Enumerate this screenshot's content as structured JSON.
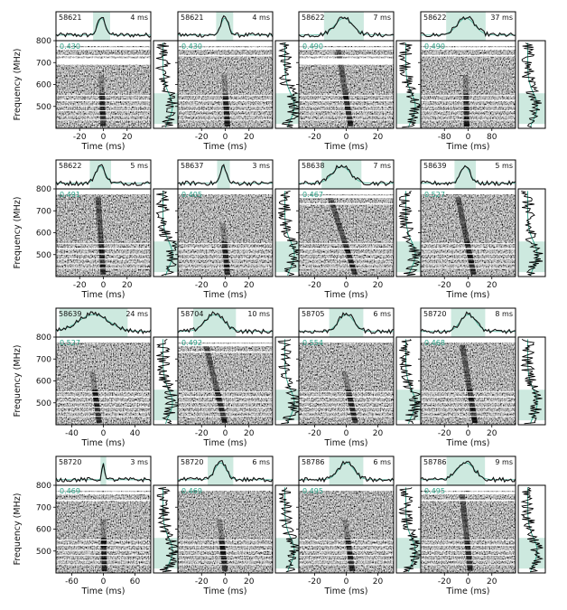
{
  "figure": {
    "freq_axis_label": "Frequency (MHz)",
    "time_axis_label": "Time (ms)",
    "colors": {
      "highlight": "#cde9df",
      "dm_text": "#2aa085",
      "profile": "#111111",
      "model": "#2aa085"
    }
  },
  "chart_data": [
    {
      "type": "heatmap",
      "mjd": "58621",
      "width": "4 ms",
      "dm_offset": "0.430",
      "xlim": [
        -40,
        40
      ],
      "xticks": [
        -20,
        0,
        20
      ],
      "ylim": [
        400,
        800
      ],
      "yticks": [
        500,
        600,
        700,
        800
      ],
      "sweep": {
        "t800": -3,
        "t400": 0
      }
    },
    {
      "type": "heatmap",
      "mjd": "58621",
      "width": "4 ms",
      "dm_offset": "0.430",
      "xlim": [
        -40,
        40
      ],
      "xticks": [
        -20,
        0,
        20
      ],
      "ylim": [
        400,
        800
      ],
      "yticks": [
        500,
        600,
        700,
        800
      ],
      "sweep": {
        "t800": -3,
        "t400": 2
      }
    },
    {
      "type": "heatmap",
      "mjd": "58622",
      "width": "7 ms",
      "dm_offset": "0.490",
      "xlim": [
        -30,
        30
      ],
      "xticks": [
        -20,
        0,
        20
      ],
      "ylim": [
        400,
        800
      ],
      "yticks": [
        500,
        600,
        700,
        800
      ],
      "sweep": {
        "t800": -6,
        "t400": 3
      }
    },
    {
      "type": "heatmap",
      "mjd": "58622",
      "width": "37 ms",
      "dm_offset": "0.490",
      "xlim": [
        -160,
        160
      ],
      "xticks": [
        -80,
        0,
        80
      ],
      "ylim": [
        400,
        800
      ],
      "yticks": [
        500,
        600,
        700,
        800
      ],
      "sweep": {
        "t800": -10,
        "t400": -5
      }
    },
    {
      "type": "heatmap",
      "mjd": "58622",
      "width": "5 ms",
      "dm_offset": "0.491",
      "xlim": [
        -40,
        40
      ],
      "xticks": [
        -20,
        0,
        20
      ],
      "ylim": [
        400,
        800
      ],
      "yticks": [
        500,
        600,
        700,
        800
      ],
      "sweep": {
        "t800": -5,
        "t400": 0
      }
    },
    {
      "type": "heatmap",
      "mjd": "58637",
      "width": "3 ms",
      "dm_offset": "0.405",
      "xlim": [
        -40,
        40
      ],
      "xticks": [
        -20,
        0,
        20
      ],
      "ylim": [
        400,
        800
      ],
      "yticks": [
        500,
        600,
        700,
        800
      ],
      "sweep": {
        "t800": -5,
        "t400": 2
      }
    },
    {
      "type": "heatmap",
      "mjd": "58638",
      "width": "7 ms",
      "dm_offset": "0.467",
      "xlim": [
        -30,
        30
      ],
      "xticks": [
        -20,
        0,
        20
      ],
      "ylim": [
        400,
        800
      ],
      "yticks": [
        500,
        600,
        700,
        800
      ],
      "sweep": {
        "t800": -12,
        "t400": 6
      }
    },
    {
      "type": "heatmap",
      "mjd": "58639",
      "width": "5 ms",
      "dm_offset": "0.527",
      "xlim": [
        -40,
        40
      ],
      "xticks": [
        -20,
        0,
        20
      ],
      "ylim": [
        400,
        800
      ],
      "yticks": [
        500,
        600,
        700,
        800
      ],
      "sweep": {
        "t800": -10,
        "t400": 5
      }
    },
    {
      "type": "heatmap",
      "mjd": "58639",
      "width": "24 ms",
      "dm_offset": "0.527",
      "xlim": [
        -60,
        60
      ],
      "xticks": [
        -40,
        0,
        40
      ],
      "ylim": [
        400,
        800
      ],
      "yticks": [
        500,
        600,
        700,
        800
      ],
      "sweep": {
        "t800": -20,
        "t400": -5
      }
    },
    {
      "type": "heatmap",
      "mjd": "58704",
      "width": "10 ms",
      "dm_offset": "0.492",
      "xlim": [
        -40,
        40
      ],
      "xticks": [
        -20,
        0,
        20
      ],
      "ylim": [
        400,
        800
      ],
      "yticks": [
        500,
        600,
        700,
        800
      ],
      "sweep": {
        "t800": -18,
        "t400": 0
      }
    },
    {
      "type": "heatmap",
      "mjd": "58705",
      "width": "6 ms",
      "dm_offset": "0.554",
      "xlim": [
        -30,
        30
      ],
      "xticks": [
        -20,
        0,
        20
      ],
      "ylim": [
        400,
        800
      ],
      "yticks": [
        500,
        600,
        700,
        800
      ],
      "sweep": {
        "t800": -6,
        "t400": 6
      }
    },
    {
      "type": "heatmap",
      "mjd": "58720",
      "width": "8 ms",
      "dm_offset": "0.468",
      "xlim": [
        -40,
        40
      ],
      "xticks": [
        -20,
        0,
        20
      ],
      "ylim": [
        400,
        800
      ],
      "yticks": [
        500,
        600,
        700,
        800
      ],
      "sweep": {
        "t800": -6,
        "t400": 6
      }
    },
    {
      "type": "heatmap",
      "mjd": "58720",
      "width": "3 ms",
      "dm_offset": "0.469",
      "xlim": [
        -90,
        90
      ],
      "xticks": [
        -60,
        0,
        60
      ],
      "ylim": [
        400,
        800
      ],
      "yticks": [
        500,
        600,
        700,
        800
      ],
      "sweep": {
        "t800": -2,
        "t400": 2
      }
    },
    {
      "type": "heatmap",
      "mjd": "58720",
      "width": "6 ms",
      "dm_offset": "0.469",
      "xlim": [
        -40,
        40
      ],
      "xticks": [
        -20,
        0,
        20
      ],
      "ylim": [
        400,
        800
      ],
      "yticks": [
        500,
        600,
        700,
        800
      ],
      "sweep": {
        "t800": -8,
        "t400": 0
      }
    },
    {
      "type": "heatmap",
      "mjd": "58786",
      "width": "6 ms",
      "dm_offset": "0.495",
      "xlim": [
        -30,
        30
      ],
      "xticks": [
        -20,
        0,
        20
      ],
      "ylim": [
        400,
        800
      ],
      "yticks": [
        500,
        600,
        700,
        800
      ],
      "sweep": {
        "t800": -4,
        "t400": 4
      }
    },
    {
      "type": "heatmap",
      "mjd": "58786",
      "width": "9 ms",
      "dm_offset": "0.495",
      "xlim": [
        -40,
        40
      ],
      "xticks": [
        -20,
        0,
        20
      ],
      "ylim": [
        400,
        800
      ],
      "yticks": [
        500,
        600,
        700,
        800
      ],
      "sweep": {
        "t800": -6,
        "t400": 2
      }
    }
  ]
}
